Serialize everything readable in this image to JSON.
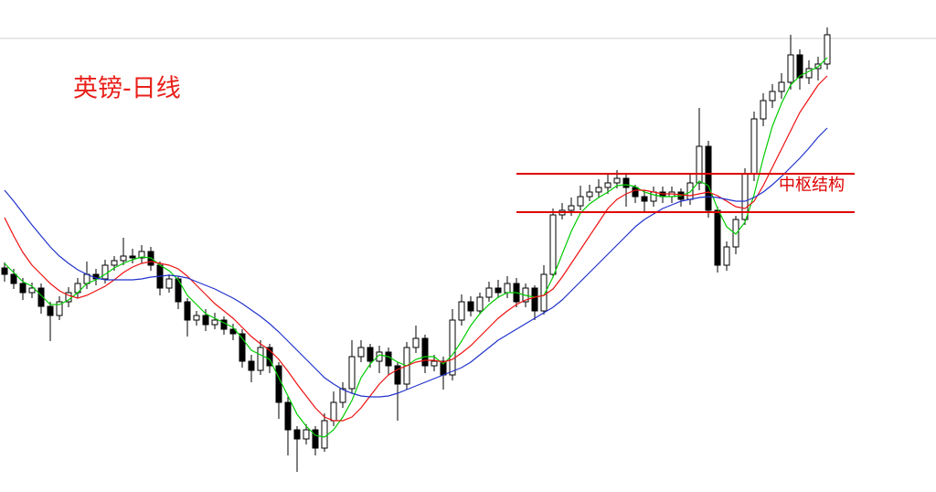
{
  "chart_data": {
    "type": "candlestick",
    "title": "英镑-日线",
    "ylim": [
      0,
      538
    ],
    "open": [
      245,
      238,
      228,
      218,
      223,
      203,
      193,
      208,
      218,
      228,
      238,
      233,
      248,
      253,
      258,
      256,
      263,
      248,
      223,
      233,
      208,
      188,
      193,
      183,
      188,
      178,
      173,
      143,
      133,
      158,
      138,
      98,
      68,
      58,
      68,
      48,
      78,
      98,
      113,
      148,
      158,
      143,
      153,
      138,
      118,
      158,
      168,
      138,
      143,
      128,
      188,
      208,
      198,
      213,
      223,
      218,
      228,
      208,
      223,
      198,
      238,
      303,
      308,
      313,
      323,
      328,
      333,
      338,
      343,
      333,
      323,
      318,
      328,
      323,
      328,
      320,
      338,
      378,
      308,
      248,
      268,
      298,
      348,
      408,
      428,
      438,
      448,
      478,
      453,
      463,
      468
    ],
    "high": [
      251,
      244,
      234,
      229,
      228,
      208,
      214,
      224,
      234,
      252,
      244,
      254,
      258,
      278,
      266,
      270,
      268,
      252,
      238,
      236,
      212,
      198,
      200,
      196,
      192,
      184,
      178,
      150,
      166,
      162,
      142,
      104,
      72,
      74,
      72,
      86,
      110,
      120,
      166,
      166,
      162,
      160,
      158,
      142,
      164,
      182,
      172,
      150,
      148,
      200,
      216,
      214,
      218,
      230,
      232,
      236,
      234,
      228,
      226,
      248,
      310,
      316,
      322,
      335,
      336,
      342,
      348,
      352,
      348,
      336,
      330,
      334,
      334,
      334,
      332,
      348,
      420,
      384,
      312,
      274,
      302,
      354,
      416,
      436,
      446,
      458,
      500,
      484,
      472,
      476,
      508
    ],
    "low": [
      230,
      222,
      210,
      212,
      195,
      165,
      188,
      202,
      212,
      222,
      226,
      228,
      242,
      248,
      250,
      250,
      242,
      215,
      218,
      200,
      170,
      182,
      176,
      178,
      172,
      166,
      136,
      120,
      128,
      130,
      80,
      40,
      22,
      52,
      40,
      44,
      72,
      92,
      108,
      142,
      136,
      130,
      128,
      78,
      112,
      152,
      130,
      132,
      112,
      122,
      182,
      192,
      194,
      208,
      212,
      212,
      202,
      202,
      188,
      194,
      234,
      298,
      302,
      308,
      318,
      322,
      326,
      332,
      312,
      316,
      306,
      312,
      316,
      316,
      312,
      314,
      330,
      300,
      240,
      242,
      260,
      292,
      340,
      400,
      420,
      430,
      440,
      440,
      446,
      450,
      462
    ],
    "close": [
      238,
      228,
      218,
      223,
      203,
      193,
      208,
      218,
      228,
      238,
      233,
      248,
      253,
      258,
      256,
      263,
      248,
      223,
      233,
      208,
      188,
      193,
      183,
      188,
      178,
      173,
      143,
      133,
      158,
      138,
      98,
      68,
      58,
      68,
      48,
      78,
      98,
      113,
      148,
      158,
      143,
      153,
      138,
      118,
      158,
      168,
      138,
      143,
      128,
      188,
      208,
      198,
      213,
      223,
      218,
      228,
      208,
      223,
      198,
      238,
      303,
      308,
      313,
      323,
      328,
      333,
      338,
      343,
      333,
      323,
      318,
      328,
      323,
      328,
      320,
      338,
      378,
      308,
      248,
      268,
      298,
      348,
      408,
      428,
      438,
      448,
      478,
      453,
      463,
      468,
      500
    ],
    "series": [
      {
        "color": "#00cc00",
        "values": [
          250,
          240,
          230,
          225,
          215,
          205,
          205,
          210,
          218,
          228,
          232,
          238,
          245,
          250,
          254,
          257,
          256,
          248,
          242,
          232,
          215,
          205,
          195,
          190,
          185,
          180,
          168,
          155,
          150,
          145,
          125,
          105,
          85,
          72,
          62,
          60,
          68,
          82,
          100,
          125,
          140,
          150,
          148,
          142,
          138,
          145,
          148,
          148,
          140,
          150,
          165,
          182,
          195,
          205,
          213,
          218,
          218,
          215,
          213,
          215,
          235,
          260,
          285,
          305,
          315,
          322,
          328,
          335,
          336,
          334,
          328,
          325,
          323,
          323,
          324,
          328,
          340,
          335,
          310,
          290,
          282,
          295,
          325,
          365,
          400,
          425,
          445,
          455,
          460,
          465,
          475
        ]
      },
      {
        "color": "#ee1111",
        "values": [
          300,
          280,
          262,
          248,
          238,
          228,
          220,
          215,
          212,
          215,
          220,
          225,
          232,
          240,
          246,
          250,
          252,
          250,
          248,
          244,
          236,
          226,
          216,
          206,
          198,
          190,
          180,
          170,
          162,
          155,
          145,
          132,
          118,
          105,
          92,
          82,
          78,
          78,
          82,
          92,
          105,
          118,
          128,
          134,
          138,
          142,
          144,
          144,
          142,
          145,
          152,
          160,
          170,
          180,
          190,
          198,
          205,
          210,
          213,
          215,
          222,
          235,
          250,
          265,
          280,
          295,
          310,
          320,
          326,
          330,
          330,
          328,
          326,
          326,
          325,
          324,
          326,
          328,
          324,
          318,
          312,
          310,
          318,
          335,
          355,
          375,
          395,
          415,
          430,
          445,
          455
        ]
      },
      {
        "color": "#2233cc",
        "values": [
          330,
          318,
          305,
          292,
          280,
          268,
          258,
          250,
          243,
          238,
          234,
          232,
          232,
          232,
          232,
          233,
          235,
          236,
          237,
          236,
          234,
          230,
          226,
          222,
          217,
          212,
          206,
          199,
          192,
          184,
          175,
          165,
          155,
          145,
          135,
          125,
          118,
          112,
          108,
          105,
          104,
          104,
          105,
          108,
          112,
          116,
          120,
          124,
          128,
          132,
          136,
          142,
          150,
          158,
          166,
          172,
          178,
          184,
          190,
          196,
          202,
          210,
          220,
          230,
          240,
          250,
          260,
          270,
          280,
          290,
          298,
          304,
          310,
          314,
          318,
          320,
          322,
          323,
          322,
          320,
          318,
          318,
          322,
          328,
          336,
          345,
          355,
          365,
          376,
          388,
          398
        ]
      }
    ],
    "zone": {
      "label": "中枢结构",
      "high": 348,
      "low": 306,
      "color": "#dd0000"
    }
  }
}
